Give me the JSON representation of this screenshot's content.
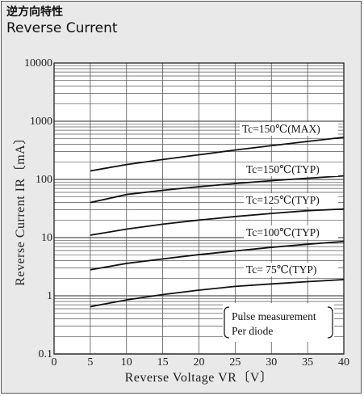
{
  "header": {
    "title_jp": "逆方向特性",
    "title_en": "Reverse Current"
  },
  "chart_data": {
    "type": "line",
    "xlabel": "Reverse Voltage  VR〔V〕",
    "ylabel": "Reverse Current  IR〔mA〕",
    "xlim": [
      0,
      40
    ],
    "ylim": [
      0.1,
      10000
    ],
    "yscale": "log",
    "grid": true,
    "x_ticks": [
      "0",
      "5",
      "10",
      "15",
      "20",
      "25",
      "30",
      "35",
      "40"
    ],
    "x_tick_values": [
      0,
      5,
      10,
      15,
      20,
      25,
      30,
      35,
      40
    ],
    "y_ticks": [
      "0.1",
      "1",
      "10",
      "100",
      "1000",
      "10000"
    ],
    "y_tick_values": [
      0.1,
      1,
      10,
      100,
      1000,
      10000
    ],
    "x": [
      5,
      10,
      15,
      20,
      25,
      30,
      35,
      40
    ],
    "series": [
      {
        "name": "Tc=150℃(MAX)",
        "values": [
          140,
          180,
          220,
          265,
          320,
          380,
          450,
          530
        ]
      },
      {
        "name": "Tc=150℃(TYP)",
        "values": [
          40,
          55,
          65,
          75,
          85,
          95,
          105,
          115
        ]
      },
      {
        "name": "Tc=125℃(TYP)",
        "values": [
          11,
          14,
          17,
          20,
          23,
          26,
          29,
          31
        ]
      },
      {
        "name": "Tc=100℃(TYP)",
        "values": [
          2.8,
          3.6,
          4.3,
          5.1,
          5.9,
          6.8,
          7.7,
          8.6
        ]
      },
      {
        "name": "Tc= 75℃(TYP)",
        "values": [
          0.65,
          0.85,
          1.05,
          1.25,
          1.45,
          1.6,
          1.75,
          1.9
        ]
      }
    ],
    "annotations": [
      "Pulse measurement",
      "Per diode"
    ],
    "colors": {
      "line": "#111111",
      "grid": "#555555",
      "plot_bg": "#ffffff",
      "panel_bg": "#e9e9e9"
    }
  }
}
